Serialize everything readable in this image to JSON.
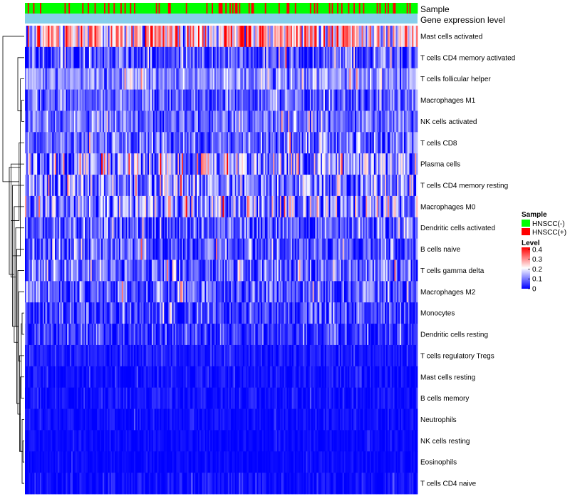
{
  "chart_data": {
    "type": "heatmap",
    "title": "",
    "column_count": 288,
    "annotations": [
      {
        "name": "Sample",
        "type": "categorical",
        "colors": {
          "HNSCC(-)": "#00ff00",
          "HNSCC(+)": "#ff0000"
        }
      },
      {
        "name": "Gene expression level",
        "type": "constant",
        "color": "#87ceeb"
      }
    ],
    "rows": [
      {
        "label": "Mast cells activated",
        "mean": 0.27,
        "spread": 0.12
      },
      {
        "label": "T cells CD4 memory activated",
        "mean": 0.06,
        "spread": 0.06
      },
      {
        "label": "T cells follicular helper",
        "mean": 0.12,
        "spread": 0.05
      },
      {
        "label": "Macrophages M1",
        "mean": 0.08,
        "spread": 0.05
      },
      {
        "label": "NK cells activated",
        "mean": 0.09,
        "spread": 0.05
      },
      {
        "label": "T cells CD8",
        "mean": 0.08,
        "spread": 0.06
      },
      {
        "label": "Plasma cells",
        "mean": 0.12,
        "spread": 0.1
      },
      {
        "label": "T cells CD4 memory resting",
        "mean": 0.1,
        "spread": 0.08
      },
      {
        "label": "Macrophages M0",
        "mean": 0.12,
        "spread": 0.1
      },
      {
        "label": "Dendritic cells activated",
        "mean": 0.07,
        "spread": 0.06
      },
      {
        "label": "B cells naive",
        "mean": 0.06,
        "spread": 0.06
      },
      {
        "label": "T cells gamma delta",
        "mean": 0.08,
        "spread": 0.07
      },
      {
        "label": "Macrophages M2",
        "mean": 0.07,
        "spread": 0.06
      },
      {
        "label": "Monocytes",
        "mean": 0.05,
        "spread": 0.05
      },
      {
        "label": "Dendritic cells resting",
        "mean": 0.04,
        "spread": 0.04
      },
      {
        "label": "T cells regulatory  Tregs",
        "mean": 0.02,
        "spread": 0.02
      },
      {
        "label": "Mast cells resting",
        "mean": 0.01,
        "spread": 0.02
      },
      {
        "label": "B cells memory",
        "mean": 0.01,
        "spread": 0.02
      },
      {
        "label": "Neutrophils",
        "mean": 0.01,
        "spread": 0.015
      },
      {
        "label": "NK cells resting",
        "mean": 0.005,
        "spread": 0.01
      },
      {
        "label": "Eosinophils",
        "mean": 0.005,
        "spread": 0.01
      },
      {
        "label": "T cells CD4 naive",
        "mean": 0.01,
        "spread": 0.02
      }
    ],
    "dendrogram_merges": [
      [
        13,
        14,
        0.1
      ],
      [
        19,
        20,
        0.06
      ],
      [
        18,
        21,
        0.1
      ],
      [
        17,
        22,
        0.14
      ],
      [
        16,
        23,
        0.18
      ],
      [
        15,
        24,
        0.22
      ],
      [
        12,
        25,
        0.26
      ],
      [
        11,
        26,
        0.3
      ],
      [
        10,
        27,
        0.35
      ],
      [
        9,
        28,
        0.4
      ],
      [
        8,
        29,
        0.47
      ],
      [
        7,
        30,
        0.55
      ],
      [
        6,
        31,
        0.62
      ],
      [
        3,
        4,
        0.12
      ],
      [
        2,
        33,
        0.18
      ],
      [
        34,
        5,
        0.24
      ],
      [
        35,
        1,
        0.3
      ],
      [
        36,
        32,
        0.7
      ],
      [
        0,
        37,
        1.0
      ]
    ],
    "legends": {
      "sample": {
        "title": "Sample",
        "entries": [
          {
            "label": "HNSCC(-)",
            "color": "#00ff00"
          },
          {
            "label": "HNSCC(+)",
            "color": "#ff0000"
          }
        ]
      },
      "level": {
        "title": "Level",
        "ticks": [
          "0.4",
          "0.3",
          "0.2",
          "0.1",
          "0"
        ],
        "range": [
          0,
          0.42
        ],
        "colormap": [
          "#0000ff",
          "#ffffff",
          "#ff0000"
        ]
      }
    }
  }
}
